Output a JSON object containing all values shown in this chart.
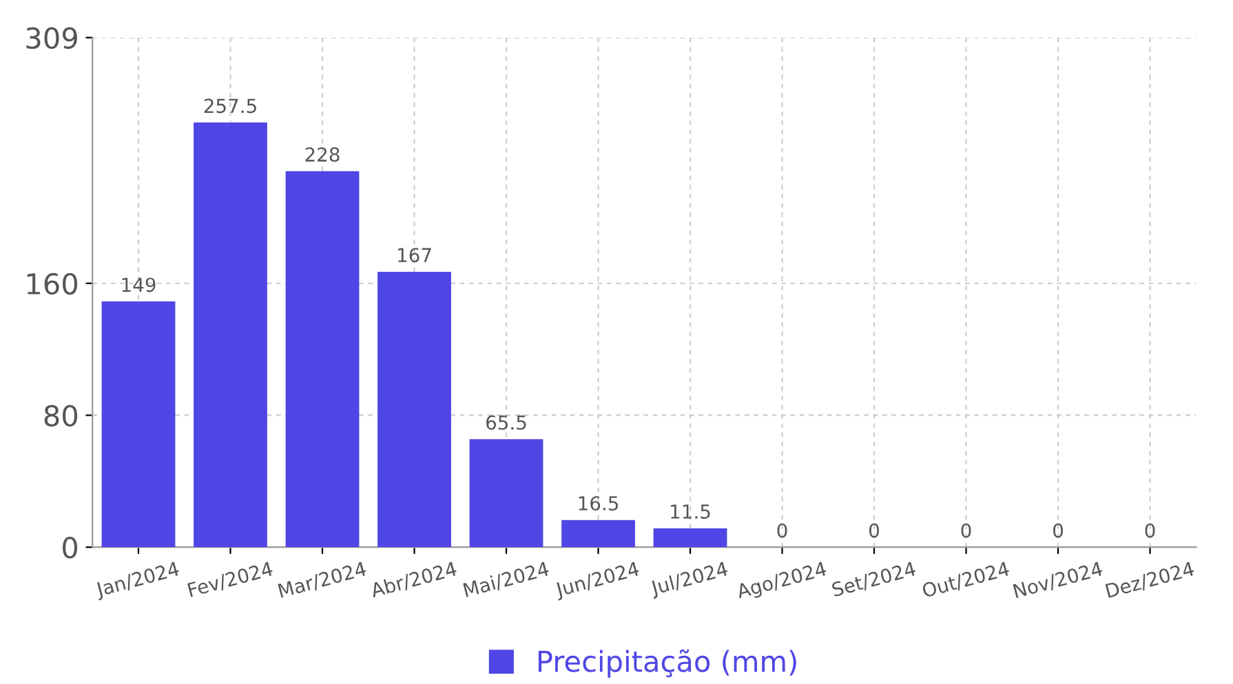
{
  "chart_data": {
    "type": "bar",
    "categories": [
      "Jan/2024",
      "Fev/2024",
      "Mar/2024",
      "Abr/2024",
      "Mai/2024",
      "Jun/2024",
      "Jul/2024",
      "Ago/2024",
      "Set/2024",
      "Out/2024",
      "Nov/2024",
      "Dez/2024"
    ],
    "series": [
      {
        "name": "Precipitação (mm)",
        "color": "#4f46e5",
        "values": [
          149,
          257.5,
          228,
          167,
          65.5,
          16.5,
          11.5,
          0,
          0,
          0,
          0,
          0
        ]
      }
    ],
    "ylim": [
      0,
      309
    ],
    "yticks": [
      0,
      80,
      160,
      309
    ],
    "grid": true,
    "legend": "bottom",
    "data_labels": true
  }
}
